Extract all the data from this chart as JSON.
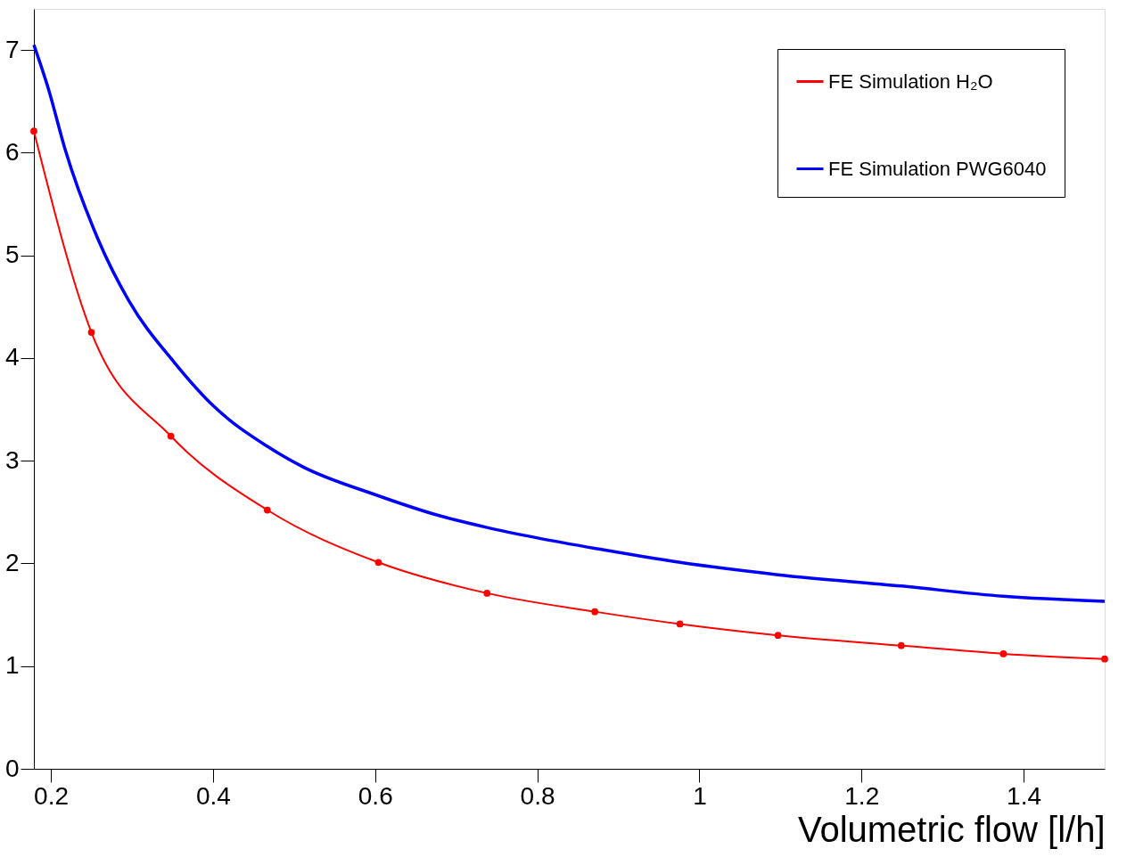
{
  "chart_data": {
    "type": "line",
    "xlabel": "Volumetric flow [l/h]",
    "xlim": [
      0.179,
      1.5
    ],
    "ylim": [
      0,
      7.4
    ],
    "xticks": [
      0.2,
      0.4,
      0.6,
      0.8,
      1,
      1.2,
      1.4
    ],
    "yticks": [
      0,
      1,
      2,
      3,
      4,
      5,
      6,
      7
    ],
    "grid": false,
    "legend": "top right",
    "series": [
      {
        "name": "FE Simulation H₂O",
        "color": "#ff0000",
        "marker": "circle",
        "x": [
          0.179,
          0.25,
          0.348,
          0.467,
          0.604,
          0.738,
          0.871,
          0.976,
          1.097,
          1.249,
          1.375,
          1.5
        ],
        "values": [
          6.21,
          4.25,
          3.24,
          2.52,
          2.01,
          1.71,
          1.53,
          1.41,
          1.3,
          1.2,
          1.12,
          1.07
        ]
      },
      {
        "name": "FE Simulation PWG6040",
        "color": "#0000ff",
        "marker": "none",
        "x": [
          0.179,
          0.197,
          0.218,
          0.258,
          0.296,
          0.352,
          0.401,
          0.467,
          0.511,
          0.6,
          0.677,
          0.738,
          0.799,
          0.876,
          0.976,
          1.097,
          1.249,
          1.375,
          1.5
        ],
        "values": [
          7.05,
          6.62,
          6.02,
          5.16,
          4.56,
          3.96,
          3.53,
          3.14,
          2.94,
          2.67,
          2.47,
          2.35,
          2.25,
          2.14,
          2.01,
          1.89,
          1.78,
          1.68,
          1.63
        ]
      }
    ]
  }
}
